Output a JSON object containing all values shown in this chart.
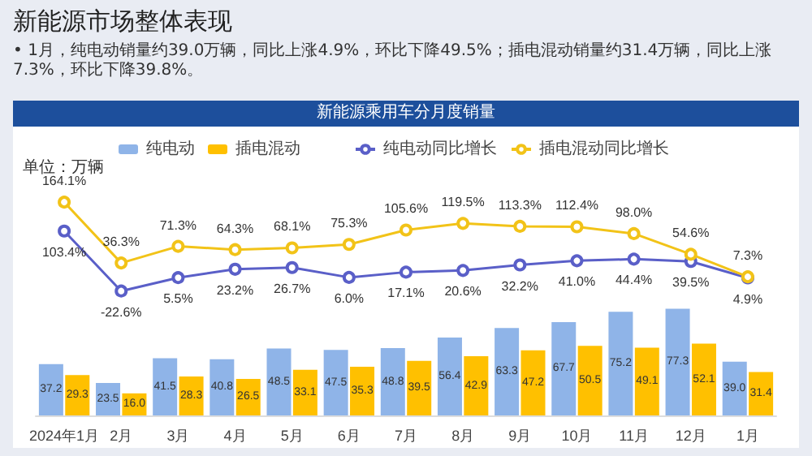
{
  "chart_data": [
    {
      "type": "other",
      "title": "新能源市场整体表现",
      "subtitle": "•  1月，纯电动销量约39.0万辆，同比上涨4.9%，环比下降49.5%；插电混动销量约31.4万辆，同比上涨7.3%，环比下降39.8%。"
    },
    {
      "type": "bar",
      "annotations": [
        "新能源乘用车分月度销量",
        "单位：万辆"
      ],
      "categories": [
        "2024年1月",
        "2月",
        "3月",
        "4月",
        "5月",
        "6月",
        "7月",
        "8月",
        "9月",
        "10月",
        "11月",
        "12月",
        "1月"
      ],
      "series": [
        {
          "name": "纯电动",
          "color": "#8fb4e8",
          "values": [
            37.2,
            23.5,
            41.5,
            40.8,
            48.5,
            47.5,
            48.8,
            56.4,
            63.3,
            67.7,
            75.2,
            77.3,
            39.0
          ],
          "value_labels": [
            "37.2",
            "23.5",
            "41.5",
            "40.8",
            "48.5",
            "47.5",
            "48.8",
            "56.4",
            "63.3",
            "67.7",
            "75.2",
            "77.3",
            "39.0"
          ]
        },
        {
          "name": "插电混动",
          "color": "#ffc000",
          "values": [
            29.3,
            16.0,
            28.3,
            26.5,
            33.1,
            35.3,
            39.5,
            42.9,
            47.2,
            50.5,
            49.1,
            52.1,
            31.4
          ],
          "value_labels": [
            "29.3",
            "16.0",
            "28.3",
            "26.5",
            "33.1",
            "35.3",
            "39.5",
            "42.9",
            "47.2",
            "50.5",
            "49.1",
            "52.1",
            "31.4"
          ]
        }
      ],
      "tick_labels": "x",
      "legend": "top"
    },
    {
      "type": "line",
      "categories": [
        null,
        null,
        null,
        null,
        null,
        null,
        null,
        null,
        null,
        null,
        null,
        null,
        null
      ],
      "series": [
        {
          "name": "纯电动同比增长",
          "color": "#5a5fc8",
          "values": [
            103.4,
            -22.6,
            5.5,
            23.2,
            26.7,
            6.0,
            17.1,
            20.6,
            32.2,
            41.0,
            44.4,
            39.5,
            4.9
          ],
          "value_labels": [
            "103.4%",
            "-22.6%",
            "5.5%",
            "23.2%",
            "26.7%",
            "6.0%",
            "17.1%",
            "20.6%",
            "32.2%",
            "41.0%",
            "44.4%",
            "39.5%",
            "4.9%"
          ]
        },
        {
          "name": "插电混动同比增长",
          "color": "#f2c318",
          "values": [
            164.1,
            36.3,
            71.3,
            64.3,
            68.1,
            75.3,
            105.6,
            119.5,
            113.3,
            112.4,
            98.0,
            54.6,
            7.3
          ],
          "value_labels": [
            "164.1%",
            "36.3%",
            "71.3%",
            "64.3%",
            "68.1%",
            "75.3%",
            "105.6%",
            "119.5%",
            "113.3%",
            "112.4%",
            "98.0%",
            "54.6%",
            "7.3%"
          ]
        }
      ],
      "tick_labels": false,
      "legend": "top",
      "marker": "circle",
      "line_style": "solid"
    }
  ]
}
